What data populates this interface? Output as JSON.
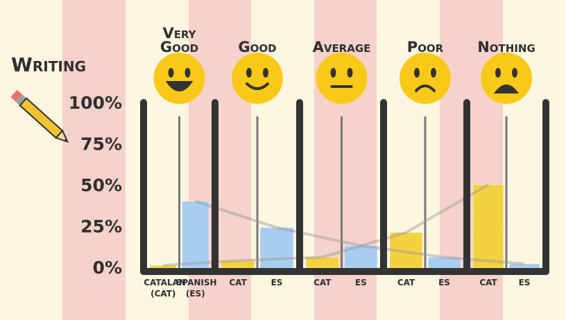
{
  "chart_data": {
    "type": "bar",
    "title": "Writing",
    "categories": [
      "Very Good",
      "Good",
      "Average",
      "Poor",
      "Nothing"
    ],
    "series": [
      {
        "name": "CATALAN (CAT)",
        "short_name": "CAT",
        "color": "#f4d13f",
        "values": [
          2,
          5,
          7,
          22,
          51
        ]
      },
      {
        "name": "SPANISH (ES)",
        "short_name": "ES",
        "color": "#a9cdf0",
        "values": [
          41,
          25,
          14,
          7,
          3
        ]
      }
    ],
    "ylim": [
      0,
      100
    ],
    "yticks": [
      {
        "value": 0,
        "label": "0%"
      },
      {
        "value": 25,
        "label": "25%"
      },
      {
        "value": 50,
        "label": "50%"
      },
      {
        "value": 75,
        "label": "75%"
      },
      {
        "value": 100,
        "label": "100%"
      }
    ]
  }
}
